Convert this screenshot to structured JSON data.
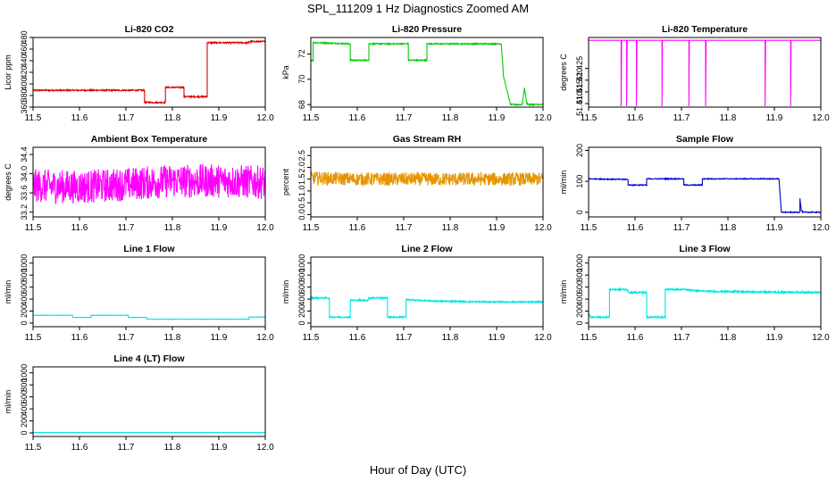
{
  "figure": {
    "title": "SPL_111209  1 Hz Diagnostics Zoomed AM",
    "xlabel": "Hour of Day (UTC)"
  },
  "chart_data": [
    {
      "type": "line",
      "title": "Li-820 CO2",
      "xlabel": "",
      "ylabel": "Licor ppm",
      "xlim": [
        11.5,
        12.0
      ],
      "ylim": [
        360,
        480
      ],
      "xticks": [
        "11.5",
        "11.6",
        "11.7",
        "11.8",
        "11.9",
        "12.0"
      ],
      "yticks": [
        "360",
        "380",
        "400",
        "420",
        "440",
        "460",
        "480"
      ],
      "color": "#dd0000",
      "noise": 1.2,
      "series": [
        {
          "x": [
            11.5,
            11.74,
            11.74,
            11.785,
            11.785,
            11.825,
            11.825,
            11.875,
            11.875,
            11.965,
            11.965,
            12.0
          ],
          "y": [
            389,
            389,
            368,
            368,
            394,
            394,
            378,
            378,
            471,
            471,
            473,
            473
          ]
        }
      ]
    },
    {
      "type": "line",
      "title": "Li-820 Pressure",
      "xlabel": "",
      "ylabel": "kPa",
      "xlim": [
        11.5,
        12.0
      ],
      "ylim": [
        67.8,
        73.3
      ],
      "xticks": [
        "11.5",
        "11.6",
        "11.7",
        "11.8",
        "11.9",
        "12.0"
      ],
      "yticks": [
        "68",
        "70",
        "72"
      ],
      "color": "#00cc00",
      "noise": 0.05,
      "series": [
        {
          "x": [
            11.5,
            11.505,
            11.505,
            11.585,
            11.585,
            11.625,
            11.625,
            11.71,
            11.71,
            11.75,
            11.75,
            11.81,
            11.91,
            11.915,
            11.93,
            11.955,
            11.96,
            11.965,
            11.97,
            12.0
          ],
          "y": [
            71.5,
            71.5,
            72.9,
            72.8,
            71.5,
            71.5,
            72.8,
            72.8,
            71.5,
            71.5,
            72.8,
            72.8,
            72.8,
            70.2,
            68.0,
            68.0,
            69.3,
            68.1,
            68.0,
            68.0
          ]
        }
      ]
    },
    {
      "type": "line",
      "title": "Li-820 Temperature",
      "xlabel": "",
      "ylabel": "degrees C",
      "xlim": [
        11.5,
        12.0
      ],
      "ylim": [
        51.4085,
        51.4382
      ],
      "xticks": [
        "11.5",
        "11.6",
        "11.7",
        "11.8",
        "11.9",
        "12.0"
      ],
      "yticks": [
        "51.410",
        "51.415",
        "51.420",
        "51.425"
      ],
      "color": "#ff00ff",
      "noise": 0,
      "series": [
        {
          "x": [
            11.5,
            11.57,
            11.57,
            11.571,
            11.582,
            11.582,
            11.583,
            11.603,
            11.603,
            11.604,
            11.658,
            11.658,
            11.659,
            11.716,
            11.716,
            11.717,
            11.752,
            11.752,
            11.753,
            11.88,
            11.88,
            11.881,
            11.935,
            11.935,
            11.936,
            12.0
          ],
          "y": [
            51.437,
            51.437,
            51.409,
            51.437,
            51.437,
            51.409,
            51.437,
            51.437,
            51.409,
            51.437,
            51.437,
            51.409,
            51.437,
            51.437,
            51.409,
            51.437,
            51.437,
            51.409,
            51.437,
            51.437,
            51.409,
            51.437,
            51.437,
            51.409,
            51.437,
            51.437
          ]
        }
      ]
    },
    {
      "type": "line",
      "title": "Ambient Box Temperature",
      "xlabel": "",
      "ylabel": "degrees C",
      "xlim": [
        11.5,
        12.0
      ],
      "ylim": [
        33.1,
        34.55
      ],
      "xticks": [
        "11.5",
        "11.6",
        "11.7",
        "11.8",
        "11.9",
        "12.0"
      ],
      "yticks": [
        "33.2",
        "33.6",
        "34.0",
        "34.4"
      ],
      "color": "#ff00ff",
      "noise": 0.35,
      "series": [
        {
          "x": [
            11.5,
            11.6,
            11.7,
            11.8,
            11.9,
            12.0
          ],
          "y": [
            33.75,
            33.72,
            33.78,
            33.85,
            33.85,
            33.82
          ]
        }
      ]
    },
    {
      "type": "line",
      "title": "Gas Stream RH",
      "xlabel": "",
      "ylabel": "percent",
      "xlim": [
        11.5,
        12.0
      ],
      "ylim": [
        -0.1,
        2.85
      ],
      "xticks": [
        "11.5",
        "11.6",
        "11.7",
        "11.8",
        "11.9",
        "12.0"
      ],
      "yticks": [
        "0.0",
        "0.5",
        "1.0",
        "1.5",
        "2.0",
        "2.5"
      ],
      "color": "#e69500",
      "noise": 0.28,
      "series": [
        {
          "x": [
            11.5,
            11.6,
            11.7,
            11.8,
            11.9,
            12.0
          ],
          "y": [
            1.55,
            1.5,
            1.5,
            1.5,
            1.5,
            1.5
          ]
        }
      ]
    },
    {
      "type": "line",
      "title": "Sample Flow",
      "xlabel": "",
      "ylabel": "ml/min",
      "xlim": [
        11.5,
        12.0
      ],
      "ylim": [
        -15,
        210
      ],
      "xticks": [
        "11.5",
        "11.6",
        "11.7",
        "11.8",
        "11.9",
        "12.0"
      ],
      "yticks": [
        "0",
        "100",
        "200"
      ],
      "color": "#0000cc",
      "noise": 1.5,
      "series": [
        {
          "x": [
            11.5,
            11.585,
            11.585,
            11.625,
            11.625,
            11.705,
            11.705,
            11.745,
            11.745,
            11.91,
            11.915,
            11.955,
            11.955,
            11.958,
            11.962,
            12.0
          ],
          "y": [
            108,
            106,
            88,
            88,
            108,
            108,
            88,
            88,
            108,
            108,
            0,
            0,
            45,
            5,
            0,
            0
          ]
        }
      ]
    },
    {
      "type": "line",
      "title": "Line 1 Flow",
      "xlabel": "",
      "ylabel": "ml/min",
      "xlim": [
        11.5,
        12.0
      ],
      "ylim": [
        -60,
        1100
      ],
      "xticks": [
        "11.5",
        "11.6",
        "11.7",
        "11.8",
        "11.9",
        "12.0"
      ],
      "yticks": [
        "0",
        "200",
        "400",
        "600",
        "800",
        "1000"
      ],
      "color": "#00e5e5",
      "noise": 3,
      "series": [
        {
          "x": [
            11.5,
            11.585,
            11.585,
            11.625,
            11.625,
            11.705,
            11.705,
            11.745,
            11.745,
            11.965,
            11.965,
            12.0
          ],
          "y": [
            130,
            130,
            95,
            95,
            130,
            130,
            95,
            95,
            65,
            65,
            100,
            100
          ]
        }
      ]
    },
    {
      "type": "line",
      "title": "Line 2 Flow",
      "xlabel": "",
      "ylabel": "ml/min",
      "xlim": [
        11.5,
        12.0
      ],
      "ylim": [
        -60,
        1100
      ],
      "xticks": [
        "11.5",
        "11.6",
        "11.7",
        "11.8",
        "11.9",
        "12.0"
      ],
      "yticks": [
        "0",
        "200",
        "400",
        "600",
        "800",
        "1000"
      ],
      "color": "#00e5e5",
      "noise": 12,
      "series": [
        {
          "x": [
            11.5,
            11.54,
            11.54,
            11.585,
            11.585,
            11.625,
            11.625,
            11.665,
            11.665,
            11.705,
            11.705,
            11.75,
            11.85,
            12.0
          ],
          "y": [
            420,
            420,
            100,
            100,
            380,
            380,
            420,
            420,
            100,
            100,
            390,
            370,
            355,
            350
          ]
        }
      ]
    },
    {
      "type": "line",
      "title": "Line 3 Flow",
      "xlabel": "",
      "ylabel": "ml/min",
      "xlim": [
        11.5,
        12.0
      ],
      "ylim": [
        -60,
        1100
      ],
      "xticks": [
        "11.5",
        "11.6",
        "11.7",
        "11.8",
        "11.9",
        "12.0"
      ],
      "yticks": [
        "0",
        "200",
        "400",
        "600",
        "800",
        "1000"
      ],
      "color": "#00e5e5",
      "noise": 14,
      "series": [
        {
          "x": [
            11.5,
            11.5,
            11.505,
            11.545,
            11.545,
            11.585,
            11.585,
            11.625,
            11.625,
            11.665,
            11.665,
            11.705,
            11.75,
            11.85,
            12.0
          ],
          "y": [
            160,
            160,
            100,
            100,
            560,
            560,
            510,
            510,
            100,
            100,
            560,
            560,
            530,
            520,
            510
          ]
        }
      ]
    },
    {
      "type": "line",
      "title": "Line 4 (LT) Flow",
      "xlabel": "",
      "ylabel": "ml/min",
      "xlim": [
        11.5,
        12.0
      ],
      "ylim": [
        -60,
        1100
      ],
      "xticks": [
        "11.5",
        "11.6",
        "11.7",
        "11.8",
        "11.9",
        "12.0"
      ],
      "yticks": [
        "0",
        "200",
        "400",
        "600",
        "800",
        "1000"
      ],
      "color": "#00e5e5",
      "noise": 1.5,
      "series": [
        {
          "x": [
            11.5,
            12.0
          ],
          "y": [
            5,
            5
          ]
        }
      ]
    }
  ]
}
